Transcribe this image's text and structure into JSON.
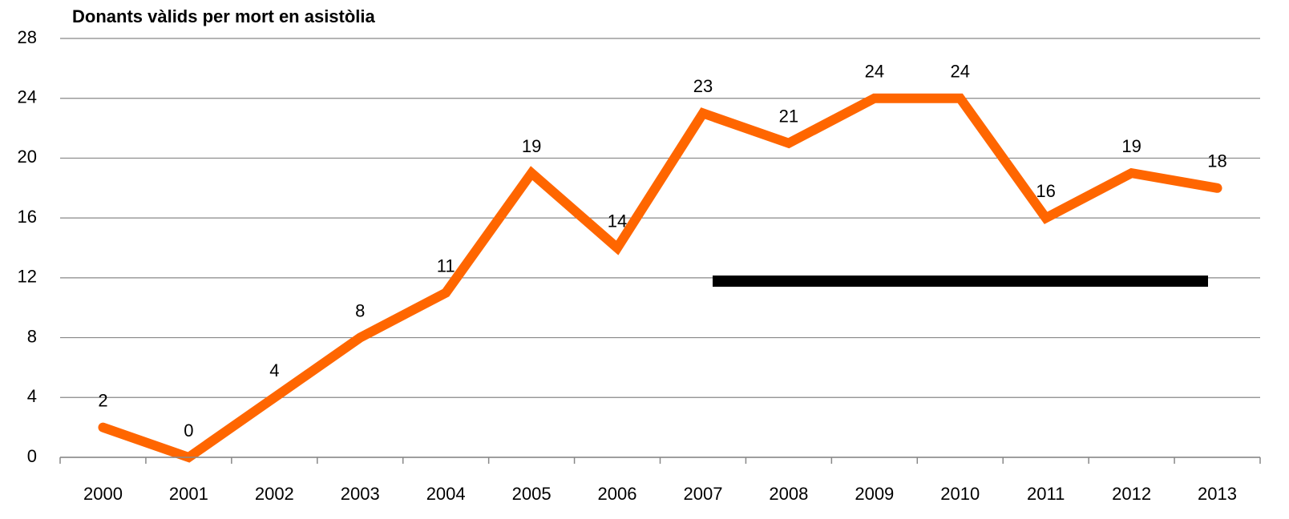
{
  "chart_data": {
    "type": "line",
    "title": "Donants vàlids per mort en asistòlia",
    "categories": [
      "2000",
      "2001",
      "2002",
      "2003",
      "2004",
      "2005",
      "2006",
      "2007",
      "2008",
      "2009",
      "2010",
      "2011",
      "2012",
      "2013"
    ],
    "values": [
      2,
      0,
      4,
      8,
      11,
      19,
      14,
      23,
      21,
      24,
      24,
      16,
      19,
      18
    ],
    "color": "#ff6600",
    "ylim": [
      0,
      28
    ],
    "yticks": [
      0,
      4,
      8,
      12,
      16,
      20,
      24,
      28
    ],
    "grid": true
  }
}
